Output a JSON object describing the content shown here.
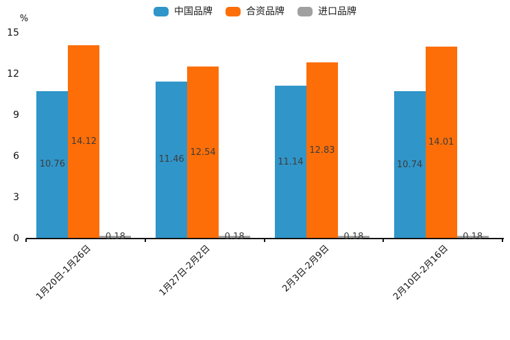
{
  "chart_data": {
    "type": "bar",
    "ylabel": "%",
    "ylim": [
      0,
      15
    ],
    "yticks": [
      0,
      3,
      6,
      9,
      12,
      15
    ],
    "grid": false,
    "legend_position": "top",
    "categories": [
      "1月20日-1月26日",
      "1月27日-2月2日",
      "2月3日-2月9日",
      "2月10日-2月16日"
    ],
    "series": [
      {
        "name": "中国品牌",
        "slug": "china-brand",
        "color": "#3095C9",
        "values": [
          10.76,
          11.46,
          11.14,
          10.74
        ]
      },
      {
        "name": "合资品牌",
        "slug": "joint-venture-brand",
        "color": "#FD6E08",
        "values": [
          14.12,
          12.54,
          12.83,
          14.01
        ]
      },
      {
        "name": "进口品牌",
        "slug": "import-brand",
        "color": "#A0A0A0",
        "values": [
          0.18,
          0.18,
          0.18,
          0.18
        ]
      }
    ],
    "axis_color": "#111111",
    "value_label_color": "#3c3c3c"
  }
}
